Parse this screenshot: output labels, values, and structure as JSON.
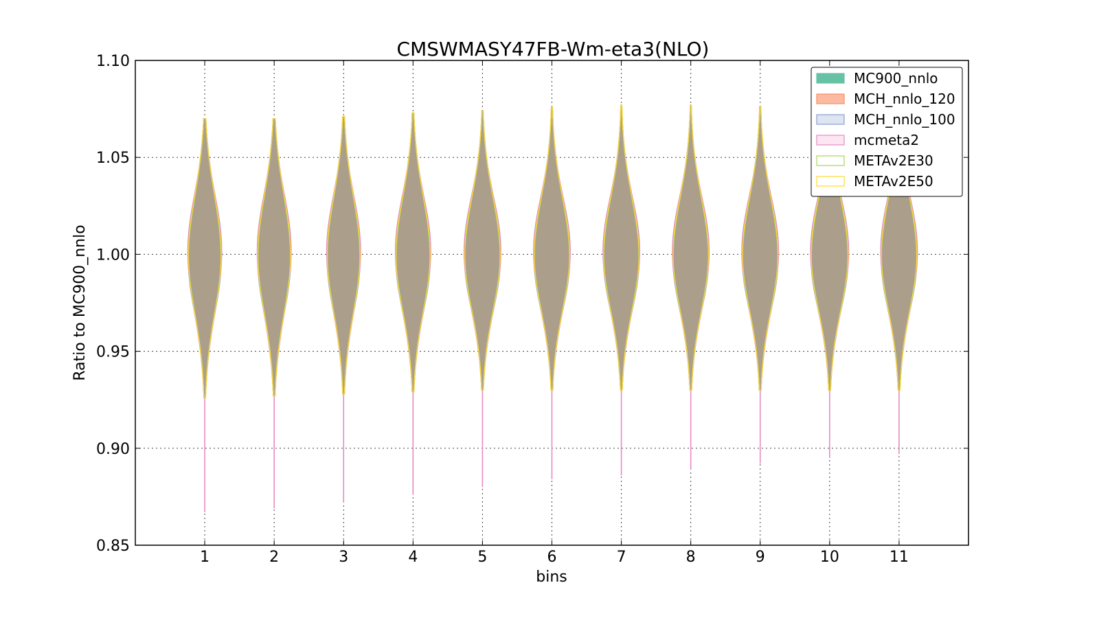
{
  "chart_data": {
    "type": "violin",
    "title": "CMSWMASY47FB-Wm-eta3(NLO)",
    "xlabel": "bins",
    "ylabel": "Ratio to MC900_nnlo",
    "ylim": [
      0.85,
      1.1
    ],
    "xlim": [
      0,
      12
    ],
    "yticks": [
      "0.85",
      "0.90",
      "0.95",
      "1.00",
      "1.05",
      "1.10"
    ],
    "categories": [
      "1",
      "2",
      "3",
      "4",
      "5",
      "6",
      "7",
      "8",
      "9",
      "10",
      "11"
    ],
    "grid": true,
    "legend_position": "top-right",
    "series": [
      {
        "name": "MC900_nnlo",
        "color": "#66c2a5",
        "fill": "#66c2a5",
        "filled": true
      },
      {
        "name": "MCH_nnlo_120",
        "color": "#fc8d62",
        "fill": "#fcbba1",
        "filled": true
      },
      {
        "name": "MCH_nnlo_100",
        "color": "#8da0cb",
        "fill": "#dde4f2",
        "filled": true
      },
      {
        "name": "mcmeta2",
        "color": "#e78ac3",
        "fill": "#fbe6f2",
        "filled": false
      },
      {
        "name": "METAv2E30",
        "color": "#a6d854",
        "fill": "none",
        "filled": false
      },
      {
        "name": "METAv2E50",
        "color": "#ffd92f",
        "fill": "none",
        "filled": false
      }
    ],
    "body_color": "#ab9f8c",
    "violins": [
      {
        "bin": 1,
        "median": 1.0,
        "width": 0.24,
        "body_low": 0.945,
        "body_high": 1.055,
        "max": 1.07,
        "min": 0.867,
        "tail_low": 0.926
      },
      {
        "bin": 2,
        "median": 1.0,
        "width": 0.24,
        "body_low": 0.945,
        "body_high": 1.055,
        "max": 1.07,
        "min": 0.869,
        "tail_low": 0.927
      },
      {
        "bin": 3,
        "median": 1.0,
        "width": 0.24,
        "body_low": 0.946,
        "body_high": 1.054,
        "max": 1.071,
        "min": 0.872,
        "tail_low": 0.928
      },
      {
        "bin": 4,
        "median": 1.0,
        "width": 0.25,
        "body_low": 0.947,
        "body_high": 1.054,
        "max": 1.073,
        "min": 0.876,
        "tail_low": 0.929
      },
      {
        "bin": 5,
        "median": 1.0,
        "width": 0.26,
        "body_low": 0.948,
        "body_high": 1.053,
        "max": 1.074,
        "min": 0.88,
        "tail_low": 0.93
      },
      {
        "bin": 6,
        "median": 1.0,
        "width": 0.26,
        "body_low": 0.948,
        "body_high": 1.053,
        "max": 1.076,
        "min": 0.884,
        "tail_low": 0.93
      },
      {
        "bin": 7,
        "median": 1.0,
        "width": 0.26,
        "body_low": 0.948,
        "body_high": 1.053,
        "max": 1.077,
        "min": 0.886,
        "tail_low": 0.93
      },
      {
        "bin": 8,
        "median": 1.0,
        "width": 0.26,
        "body_low": 0.948,
        "body_high": 1.053,
        "max": 1.077,
        "min": 0.889,
        "tail_low": 0.93
      },
      {
        "bin": 9,
        "median": 1.0,
        "width": 0.26,
        "body_low": 0.948,
        "body_high": 1.053,
        "max": 1.076,
        "min": 0.892,
        "tail_low": 0.93
      },
      {
        "bin": 10,
        "median": 1.0,
        "width": 0.27,
        "body_low": 0.948,
        "body_high": 1.053,
        "max": 1.068,
        "min": 0.895,
        "tail_low": 0.93
      },
      {
        "bin": 11,
        "median": 1.0,
        "width": 0.26,
        "body_low": 0.948,
        "body_high": 1.053,
        "max": 1.066,
        "min": 0.897,
        "tail_low": 0.93
      }
    ]
  }
}
